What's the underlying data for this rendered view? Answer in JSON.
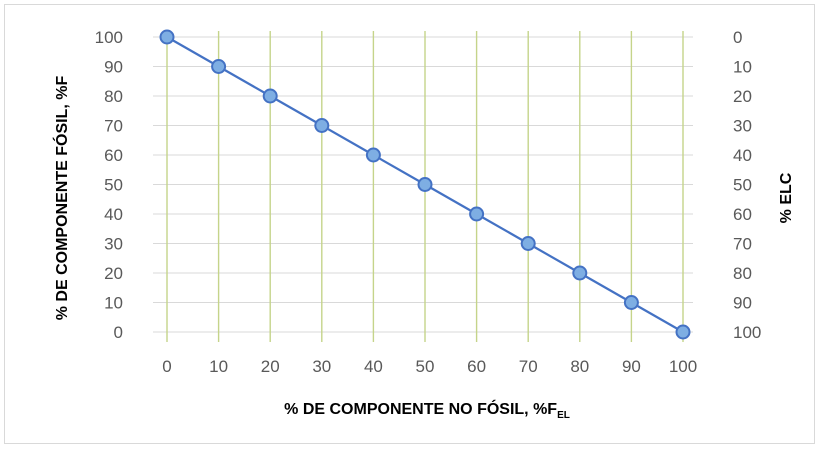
{
  "chart_data": {
    "type": "line",
    "x": [
      0,
      10,
      20,
      30,
      40,
      50,
      60,
      70,
      80,
      90,
      100
    ],
    "series": [
      {
        "values": [
          100,
          90,
          80,
          70,
          60,
          50,
          40,
          30,
          20,
          10,
          0
        ]
      }
    ],
    "xlabel": "% DE COMPONENTE NO FÓSIL, %F",
    "xlabel_sub": "EL",
    "ylabel": "% DE COMPONENTE FÓSIL, %F",
    "y2label": "% ELC",
    "xlim": [
      0,
      100
    ],
    "ylim": [
      0,
      100
    ],
    "y2lim": [
      100,
      0
    ],
    "x_ticks": [
      "0",
      "10",
      "20",
      "30",
      "40",
      "50",
      "60",
      "70",
      "80",
      "90",
      "100"
    ],
    "y_ticks": [
      "0",
      "10",
      "20",
      "30",
      "40",
      "50",
      "60",
      "70",
      "80",
      "90",
      "100"
    ],
    "y2_ticks": [
      "100",
      "90",
      "80",
      "70",
      "60",
      "50",
      "40",
      "30",
      "20",
      "10",
      "0"
    ],
    "grid": {
      "horizontal": true,
      "vertical": true
    },
    "legend": false,
    "colors": {
      "line": "#4472c4",
      "marker_fill": "#7eaee3",
      "marker_stroke": "#4472c4",
      "vgrid": "#c5d48a",
      "hgrid": "#d9d9d9"
    }
  }
}
